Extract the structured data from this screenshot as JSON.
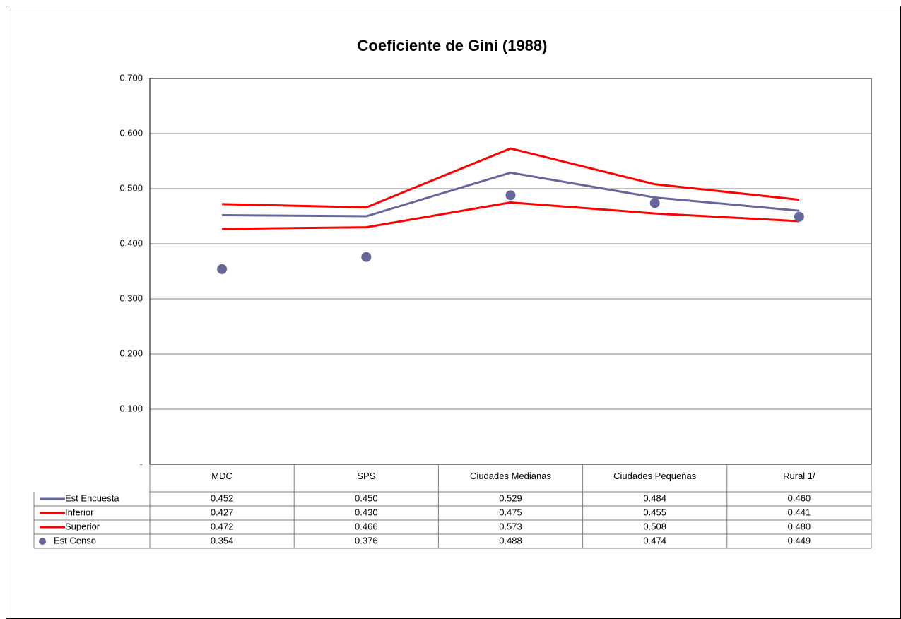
{
  "chart_data": {
    "type": "line",
    "title": "Coeficiente de Gini (1988)",
    "categories": [
      "MDC",
      "SPS",
      "Ciudades Medianas",
      "Ciudades Pequeñas",
      "Rural 1/"
    ],
    "series": [
      {
        "name": "Est Encuesta",
        "color": "#666699",
        "style": "line",
        "values": [
          0.452,
          0.45,
          0.529,
          0.484,
          0.46
        ],
        "value_labels": [
          "0.452",
          "0.450",
          "0.529",
          "0.484",
          "0.460"
        ]
      },
      {
        "name": "Inferior",
        "color": "#ff0000",
        "style": "line",
        "values": [
          0.427,
          0.43,
          0.475,
          0.455,
          0.441
        ],
        "value_labels": [
          "0.427",
          "0.430",
          "0.475",
          "0.455",
          "0.441"
        ]
      },
      {
        "name": "Superior",
        "color": "#ff0000",
        "style": "line",
        "values": [
          0.472,
          0.466,
          0.573,
          0.508,
          0.48
        ],
        "value_labels": [
          "0.472",
          "0.466",
          "0.573",
          "0.508",
          "0.480"
        ]
      },
      {
        "name": "Est Censo",
        "color": "#666699",
        "style": "marker",
        "values": [
          0.354,
          0.376,
          0.488,
          0.474,
          0.449
        ],
        "value_labels": [
          "0.354",
          "0.376",
          "0.488",
          "0.474",
          "0.449"
        ]
      }
    ],
    "ylim": [
      0,
      0.7
    ],
    "yticks": [
      {
        "value": 0,
        "label": "-"
      },
      {
        "value": 0.1,
        "label": "0.100"
      },
      {
        "value": 0.2,
        "label": "0.200"
      },
      {
        "value": 0.3,
        "label": "0.300"
      },
      {
        "value": 0.4,
        "label": "0.400"
      },
      {
        "value": 0.5,
        "label": "0.500"
      },
      {
        "value": 0.6,
        "label": "0.600"
      },
      {
        "value": 0.7,
        "label": "0.700"
      }
    ],
    "grid": true
  }
}
